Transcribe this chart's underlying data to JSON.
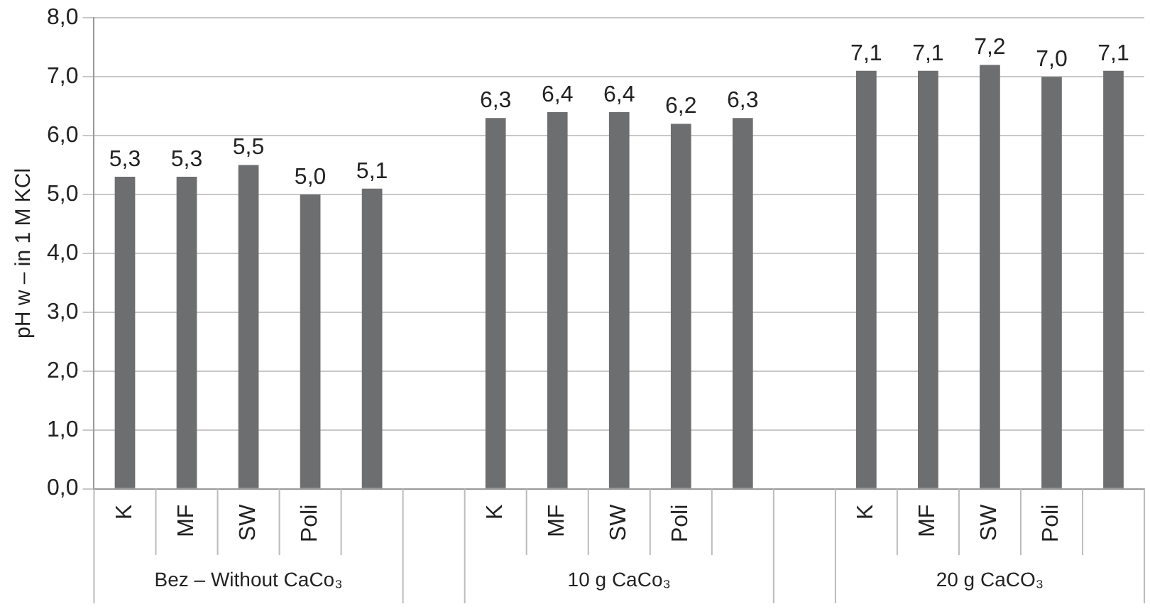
{
  "chart_data": {
    "type": "bar",
    "ylabel": "pH w – in 1 M KCl",
    "categories": [
      "K",
      "MF",
      "SW",
      "Poli",
      null,
      null,
      "K",
      "MF",
      "SW",
      "Poli",
      null,
      null,
      "K",
      "MF",
      "SW",
      "Poli",
      null
    ],
    "values": [
      5.3,
      5.3,
      5.5,
      5.0,
      5.1,
      null,
      6.3,
      6.4,
      6.4,
      6.2,
      6.3,
      null,
      7.1,
      7.1,
      7.2,
      7.0,
      7.1
    ],
    "value_labels": [
      "5,3",
      "5,3",
      "5,5",
      "5,0",
      "5,1",
      null,
      "6,3",
      "6,4",
      "6,4",
      "6,2",
      "6,3",
      null,
      "7,1",
      "7,1",
      "7,2",
      "7,0",
      "7,1"
    ],
    "color": "#6d6e70",
    "ylim": [
      0,
      8
    ],
    "yticks": [
      {
        "value": 0,
        "label": "0,0"
      },
      {
        "value": 1,
        "label": "1,0"
      },
      {
        "value": 2,
        "label": "2,0"
      },
      {
        "value": 3,
        "label": "3,0"
      },
      {
        "value": 4,
        "label": "4,0"
      },
      {
        "value": 5,
        "label": "5,0"
      },
      {
        "value": 6,
        "label": "6,0"
      },
      {
        "value": 7,
        "label": "7,0"
      },
      {
        "value": 8,
        "label": "8,0"
      }
    ],
    "grid": "y",
    "legend": false,
    "annotations": [
      "Bez – Without CaCo₃",
      "10 g CaCo₃",
      "20 g CaCO₃"
    ]
  }
}
